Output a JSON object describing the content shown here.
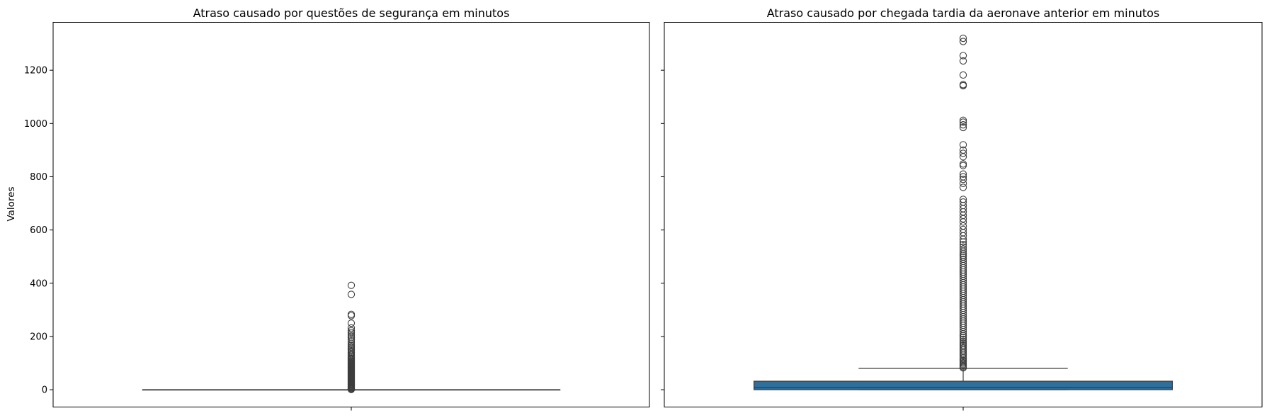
{
  "chart_data": [
    {
      "type": "box",
      "title": "Atraso causado por questões de segurança em minutos",
      "ylabel": "Valores",
      "ylim": [
        -65,
        1380
      ],
      "yticks": [
        0,
        200,
        400,
        600,
        800,
        1000,
        1200
      ],
      "box": {
        "q1": 0,
        "median": 0,
        "q3": 0,
        "whisker_low": 0,
        "whisker_high": 0,
        "fill": "#2f6f9c"
      },
      "outliers": [
        1,
        2,
        3,
        5,
        8,
        10,
        12,
        15,
        18,
        20,
        22,
        25,
        28,
        30,
        33,
        35,
        38,
        40,
        42,
        45,
        48,
        50,
        53,
        55,
        58,
        60,
        63,
        65,
        68,
        70,
        73,
        75,
        78,
        80,
        83,
        85,
        88,
        90,
        93,
        95,
        98,
        100,
        103,
        106,
        110,
        114,
        118,
        122,
        126,
        130,
        135,
        140,
        145,
        150,
        155,
        160,
        166,
        172,
        180,
        188,
        196,
        202,
        208,
        215,
        222,
        232,
        250,
        278,
        283,
        358,
        392
      ]
    },
    {
      "type": "box",
      "title": "Atraso causado por chegada tardia da aeronave anterior em minutos",
      "ylabel": "",
      "ylim": [
        -65,
        1380
      ],
      "yticks": [
        0,
        200,
        400,
        600,
        800,
        1000,
        1200
      ],
      "box": {
        "q1": 0,
        "median": 8,
        "q3": 32,
        "whisker_low": 0,
        "whisker_high": 80,
        "fill": "#2f6f9c"
      },
      "outliers": [
        82,
        86,
        90,
        95,
        100,
        105,
        110,
        115,
        120,
        126,
        132,
        138,
        144,
        150,
        156,
        162,
        168,
        175,
        182,
        189,
        196,
        203,
        210,
        218,
        226,
        234,
        242,
        250,
        258,
        266,
        274,
        282,
        290,
        298,
        306,
        314,
        322,
        330,
        338,
        346,
        354,
        362,
        370,
        378,
        386,
        394,
        402,
        410,
        418,
        426,
        434,
        442,
        450,
        458,
        466,
        474,
        482,
        490,
        498,
        505,
        512,
        520,
        528,
        536,
        545,
        555,
        565,
        578,
        590,
        602,
        615,
        630,
        642,
        655,
        668,
        680,
        692,
        705,
        715,
        760,
        775,
        790,
        800,
        810,
        842,
        848,
        875,
        888,
        900,
        920,
        985,
        995,
        1005,
        1012,
        1142,
        1146,
        1182,
        1235,
        1255,
        1308,
        1320
      ]
    }
  ]
}
